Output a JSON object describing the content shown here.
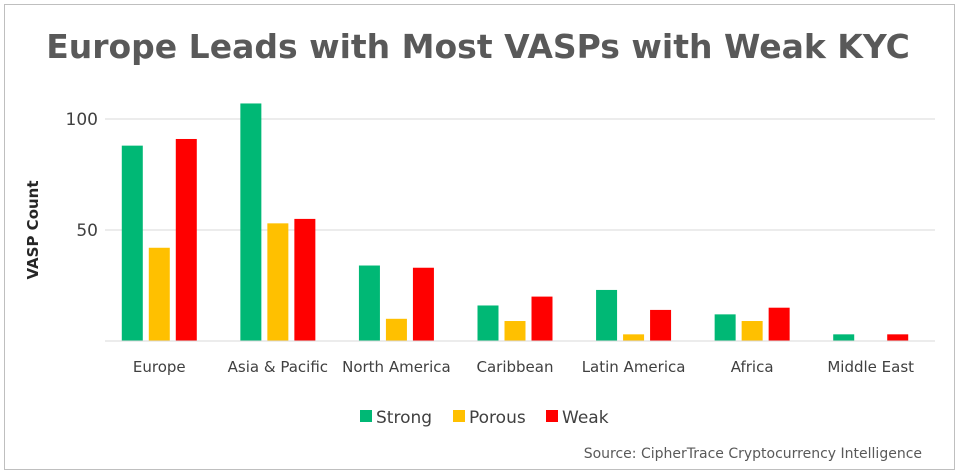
{
  "chart_data": {
    "type": "bar",
    "title": "Europe Leads with Most VASPs with Weak KYC",
    "ylabel": "VASP Count",
    "xlabel": "",
    "ylim": [
      0,
      120
    ],
    "yticks": [
      50,
      100
    ],
    "grid": true,
    "legend_position": "bottom",
    "categories": [
      "Europe",
      "Asia & Pacific",
      "North America",
      "Caribbean",
      "Latin America",
      "Africa",
      "Middle East"
    ],
    "series": [
      {
        "name": "Strong",
        "color": "#00b875",
        "values": [
          88,
          107,
          34,
          16,
          23,
          12,
          3
        ]
      },
      {
        "name": "Porous",
        "color": "#ffc000",
        "values": [
          42,
          53,
          10,
          9,
          3,
          9,
          0
        ]
      },
      {
        "name": "Weak",
        "color": "#ff0000",
        "values": [
          91,
          55,
          33,
          20,
          14,
          15,
          3
        ]
      }
    ],
    "source": "Source: CipherTrace Cryptocurrency Intelligence"
  }
}
